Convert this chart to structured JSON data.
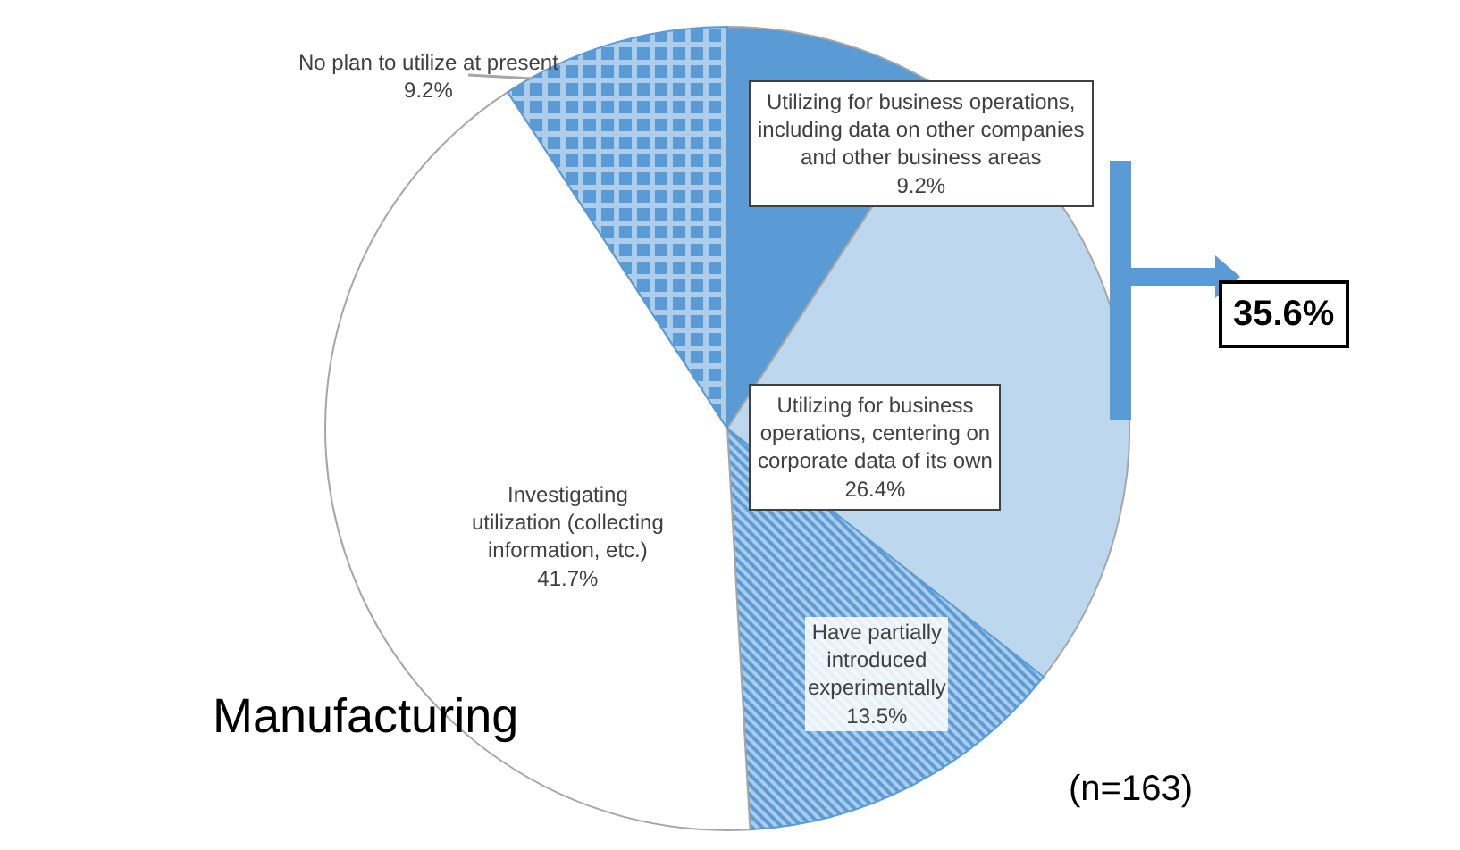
{
  "chart_data": {
    "type": "pie",
    "categories": [
      "Utilizing for business operations, including data on other companies and other business areas",
      "Utilizing for business operations, centering on corporate data of its own",
      "Have partially introduced experimentally",
      "Investigating utilization (collecting information, etc.)",
      "No plan to utilize at present"
    ],
    "values": [
      9.2,
      26.4,
      13.5,
      41.7,
      9.2
    ],
    "value_labels": [
      "9.2%",
      "26.4%",
      "13.5%",
      "41.7%",
      "9.2%"
    ],
    "colors": [
      "#5b9bd5",
      "#bdd7ee",
      "#5b9bd5",
      "#ffffff",
      "#5b9bd5"
    ],
    "annotations": [
      "35.6%",
      "Manufacturing",
      "(n=163)"
    ]
  }
}
